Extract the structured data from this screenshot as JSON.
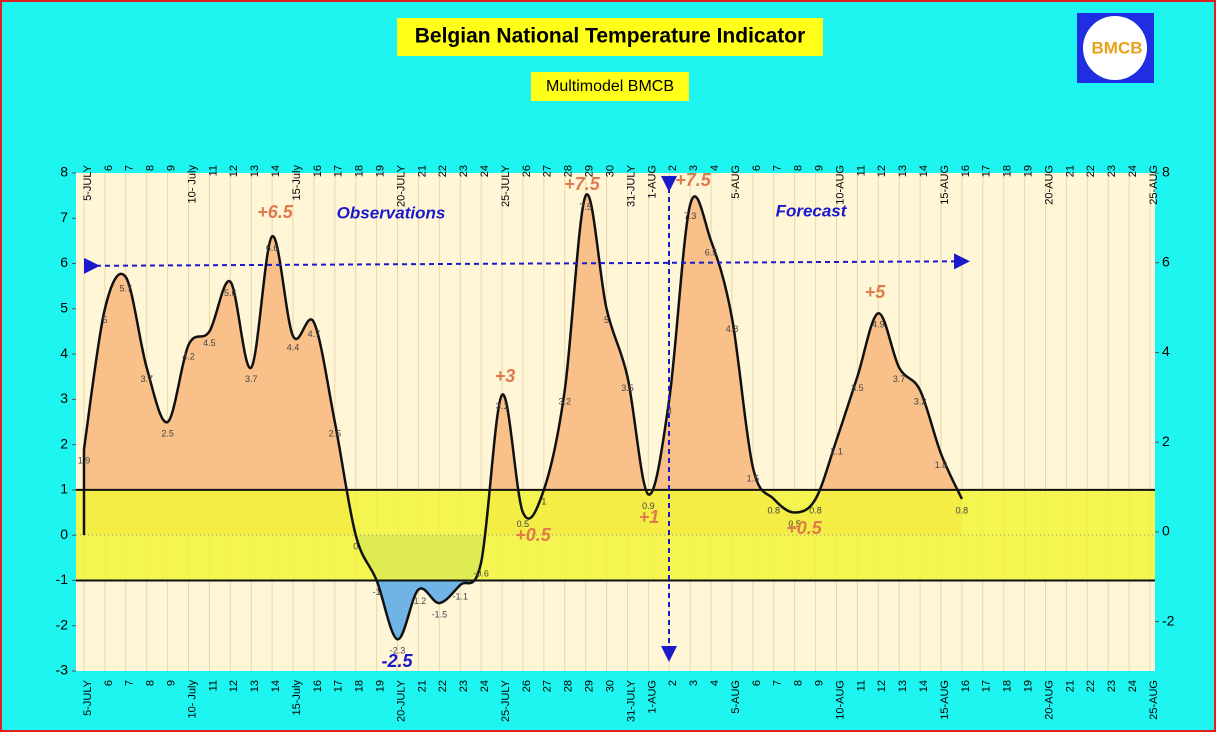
{
  "chart_data": {
    "type": "line",
    "title": "Belgian National Temperature Indicator",
    "subtitle": "Multimodel BMCB",
    "logo_text": "BMCB",
    "categories": [
      "5-JULY",
      "6",
      "7",
      "8",
      "9",
      "10- July",
      "11",
      "12",
      "13",
      "14",
      "15-July",
      "16",
      "17",
      "18",
      "19",
      "20-JULY",
      "21",
      "22",
      "23",
      "24",
      "25-JULY",
      "26",
      "27",
      "28",
      "29",
      "30",
      "31-JULY",
      "1-AUG",
      "2",
      "3",
      "4",
      "5-AUG",
      "6",
      "7",
      "8",
      "9",
      "10-AUG",
      "11",
      "12",
      "13",
      "14",
      "15-AUG",
      "16",
      "17",
      "18",
      "19",
      "20-AUG",
      "21",
      "22",
      "23",
      "24",
      "25-AUG"
    ],
    "values": [
      1.9,
      5,
      5.7,
      3.7,
      2.5,
      4.2,
      4.5,
      5.6,
      3.7,
      6.6,
      4.4,
      4.7,
      2.5,
      0,
      -1,
      -2.3,
      -1.2,
      -1.5,
      -1.1,
      -0.6,
      3.1,
      0.5,
      1,
      3.2,
      7.5,
      5,
      3.5,
      0.9,
      3,
      7.3,
      6.5,
      4.8,
      1.5,
      0.8,
      0.5,
      0.8,
      2.1,
      3.5,
      4.9,
      3.7,
      3.2,
      1.8,
      0.8,
      null,
      null,
      null,
      null,
      null,
      null,
      null,
      null,
      null
    ],
    "color": "#111111",
    "positive_fill": "#F9C08A",
    "negative_fill": "#6FB4E4",
    "band_fill": "#F2F53A",
    "band": [
      -1,
      1
    ],
    "ylim": [
      -3,
      8
    ],
    "yticks": [
      -3,
      -2,
      -1,
      0,
      1,
      2,
      3,
      4,
      5,
      6,
      7,
      8
    ],
    "y2lim": [
      -3.1,
      8
    ],
    "y2ticks": [
      -2,
      0,
      2,
      4,
      6,
      8
    ],
    "grid": true,
    "annotations": [
      {
        "text": "+6.5",
        "color": "#E07A4A"
      },
      {
        "text": "Observations",
        "color": "#1A1ACC"
      },
      {
        "text": "+7.5",
        "color": "#E07A4A"
      },
      {
        "text": "+7.5",
        "color": "#E07A4A"
      },
      {
        "text": "Forecast",
        "color": "#1A1ACC"
      },
      {
        "text": "+3",
        "color": "#E07A4A"
      },
      {
        "text": "+0.5",
        "color": "#E07A4A"
      },
      {
        "text": "+1",
        "color": "#E07A4A"
      },
      {
        "text": "+0.5",
        "color": "#E07A4A"
      },
      {
        "text": "+5",
        "color": "#E07A4A"
      },
      {
        "text": "-2.5",
        "color": "#1A1ACC"
      }
    ]
  }
}
